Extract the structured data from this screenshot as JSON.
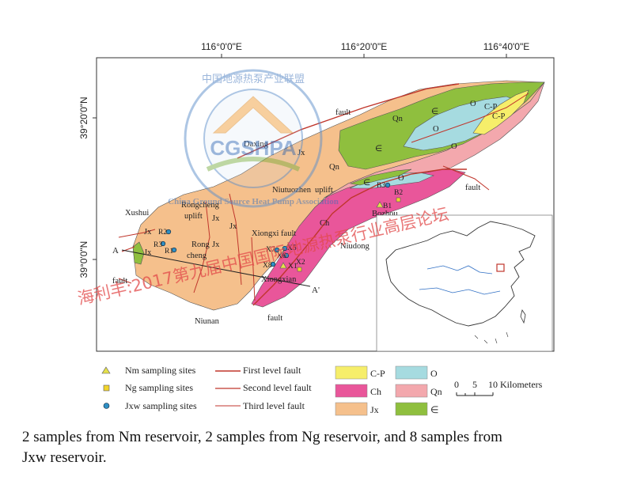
{
  "map": {
    "coords_top": [
      "116°0'0\"E",
      "116°20'0\"E",
      "116°40'0\"E"
    ],
    "coords_left": [
      "39°20'0\"N",
      "39°0'0\"N"
    ],
    "labels": {
      "fault_top": "fault",
      "qn1": "Qn",
      "daxing": "Daxing",
      "jx_upper": "Jx",
      "qn2": "Qn",
      "niutuozhen": "Niutuozhen",
      "uplift1": "uplift",
      "rongcheng": "Rongcheng",
      "uplift2": "uplift",
      "xushui": "Xushui",
      "jx_a": "Jx",
      "jx_b": "Jx",
      "xiongxi_fault": "Xiongxi fault",
      "rong": "Rong",
      "cheng": "cheng",
      "jx_c": "Jx",
      "jx_d": "Jx",
      "jx_e": "Jx",
      "fault_left": "fault",
      "xiongxian": "Xiongxian",
      "niunan": "Niunan",
      "fault_bottom": "fault",
      "ch": "Ch",
      "niudong": "Niudong",
      "bozhou": "Bozhou",
      "o1": "O",
      "o2": "O",
      "o3": "O",
      "o4": "O",
      "cp1": "C-P",
      "cp2": "C-P",
      "camb1": "∈",
      "camb2": "∈",
      "camb3": "∈",
      "fault_right": "fault",
      "section_a": "A",
      "section_a2": "A'"
    },
    "samples": [
      {
        "id": "R2",
        "type": "jxw"
      },
      {
        "id": "R3",
        "type": "jxw"
      },
      {
        "id": "R1",
        "type": "jxw"
      },
      {
        "id": "X7",
        "type": "jxw"
      },
      {
        "id": "X5",
        "type": "jxw"
      },
      {
        "id": "X6",
        "type": "jxw"
      },
      {
        "id": "X8",
        "type": "jxw"
      },
      {
        "id": "X1",
        "type": "nm"
      },
      {
        "id": "X2",
        "type": "ng"
      },
      {
        "id": "B3",
        "type": "jxw"
      },
      {
        "id": "B2",
        "type": "ng"
      },
      {
        "id": "B1",
        "type": "nm"
      }
    ]
  },
  "legend": {
    "nm": "Nm sampling sites",
    "ng": "Ng sampling sites",
    "jxw": "Jxw sampling sites",
    "fault1": "First level fault",
    "fault2": "Second level fault",
    "fault3": "Third level fault",
    "strata": [
      {
        "label": "C-P",
        "color": "#f6ee6a"
      },
      {
        "label": "O",
        "color": "#a6dbe0"
      },
      {
        "label": "Ch",
        "color": "#e9569a"
      },
      {
        "label": "Qn",
        "color": "#f3a8ad"
      },
      {
        "label": "Jx",
        "color": "#f5c08c"
      },
      {
        "label": "∈",
        "color": "#8fbf3e"
      }
    ],
    "scale_ticks": [
      "0",
      "5",
      "10"
    ],
    "scale_unit": "Kilometers"
  },
  "watermark": {
    "logo_text": "CGSHPA",
    "ring_cn": "中国地源热泵产业联盟",
    "ring_en": "China Ground Source Heat Pump Association",
    "banner": "海利丰:2017第九届中国国际地源热泵行业高层论坛"
  },
  "caption": {
    "line1": "2 samples from Nm reservoir, 2 samples from Ng reservoir, and 8 samples from",
    "line2": "Jxw reservoir."
  }
}
